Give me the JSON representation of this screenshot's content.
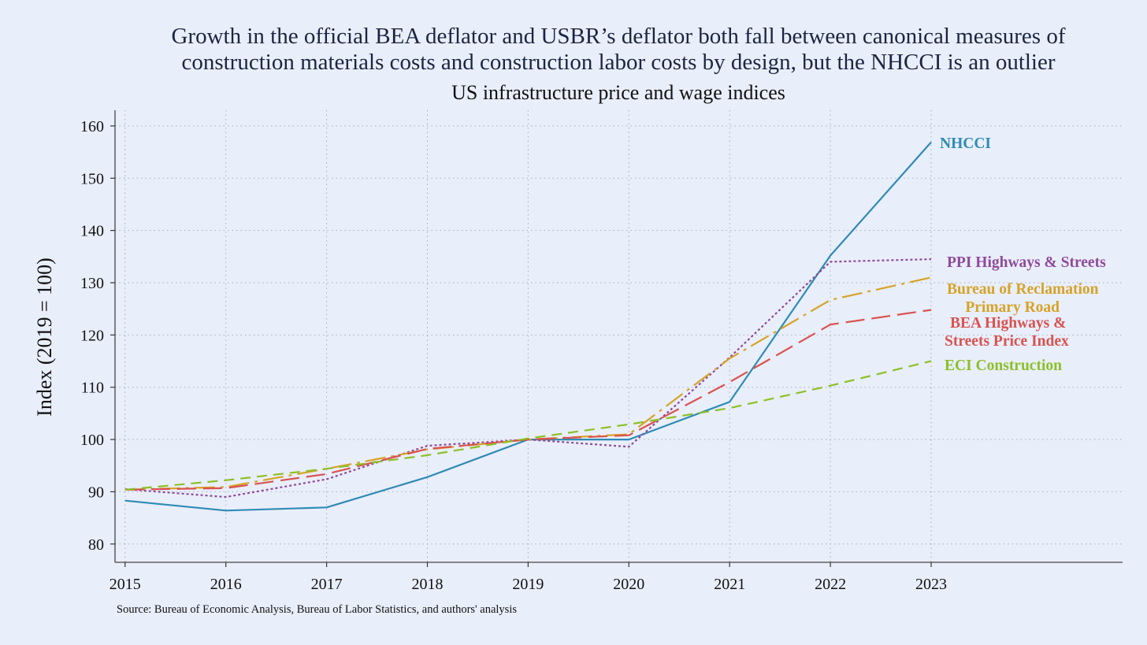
{
  "chart_data": {
    "type": "line",
    "title_lines": [
      "Growth in the official BEA deflator and USBR’s deflator both fall between canonical measures of",
      "construction materials costs and construction labor costs by design, but the NHCCI is an outlier"
    ],
    "subtitle": "US infrastructure price and wage indices",
    "ylabel": "Index (2019 = 100)",
    "xlabel": "",
    "x": [
      2015,
      2016,
      2017,
      2018,
      2019,
      2020,
      2021,
      2022,
      2023
    ],
    "xlim": [
      2014.9,
      2024.9
    ],
    "ylim": [
      76.5,
      163
    ],
    "yticks": [
      80,
      90,
      100,
      110,
      120,
      130,
      140,
      150,
      160
    ],
    "grid": true,
    "legend": "none (direct labels at line ends, right side)",
    "source": "Source: Bureau of Economic Analysis, Bureau of Labor Statistics, and authors' analysis",
    "series": [
      {
        "name": "NHCCI",
        "label_lines": [
          "NHCCI"
        ],
        "color": "#2f8bb5",
        "dash": "solid",
        "values": [
          88.3,
          86.4,
          87.0,
          92.8,
          100.0,
          100.0,
          107.2,
          135.2,
          156.9
        ]
      },
      {
        "name": "PPI Highways & Streets",
        "label_lines": [
          "PPI Highways & Streets"
        ],
        "color": "#8e4a9a",
        "dash": "dot",
        "values": [
          90.5,
          89.0,
          92.4,
          98.8,
          100.0,
          98.6,
          115.7,
          134.0,
          134.5
        ]
      },
      {
        "name": "Bureau of Reclamation Primary Road",
        "label_lines": [
          "Bureau of Reclamation",
          "Primary Road"
        ],
        "color": "#d6a326",
        "dash": "dashdot",
        "values": [
          90.4,
          90.9,
          94.4,
          98.1,
          100.0,
          101.0,
          115.5,
          126.7,
          131.0
        ]
      },
      {
        "name": "BEA Highways & Streets Price Index",
        "label_lines": [
          "BEA Highways &",
          "Streets Price Index"
        ],
        "color": "#d9534f",
        "dash": "longdash",
        "values": [
          90.4,
          90.7,
          93.4,
          98.2,
          100.0,
          100.8,
          111.0,
          122.0,
          124.8
        ]
      },
      {
        "name": "ECI Construction",
        "label_lines": [
          "ECI Construction"
        ],
        "color": "#8cc026",
        "dash": "dash",
        "values": [
          90.4,
          92.2,
          94.4,
          97.0,
          100.2,
          102.9,
          106.0,
          110.3,
          115.0
        ]
      }
    ]
  }
}
